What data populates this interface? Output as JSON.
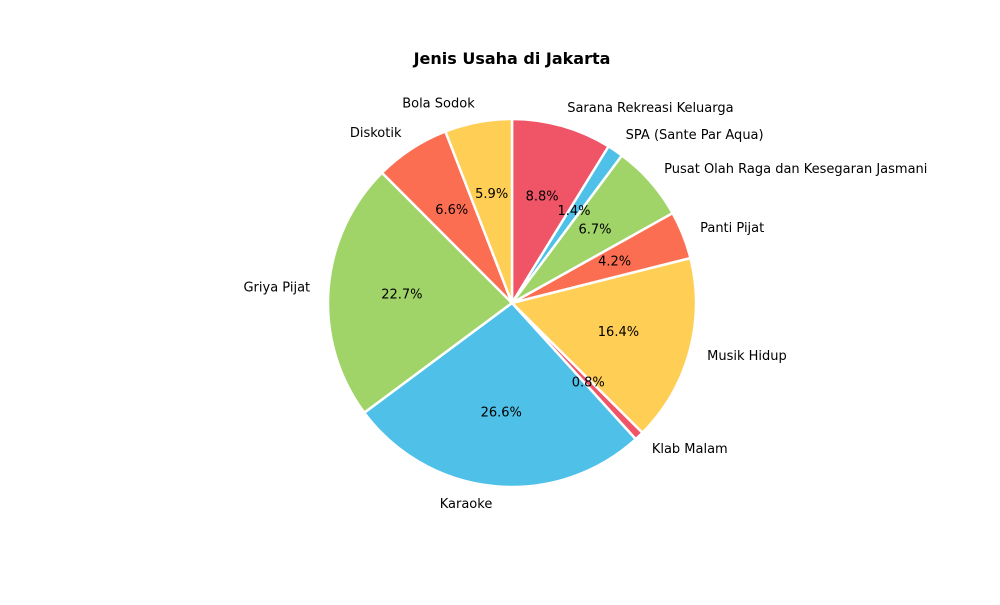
{
  "chart_data": {
    "type": "pie",
    "title": "Jenis Usaha di Jakarta",
    "categories": [
      "Sarana Rekreasi Keluarga",
      "SPA (Sante Par Aqua)",
      "Pusat Olah Raga dan Kesegaran Jasmani",
      "Panti Pijat",
      "Musik Hidup",
      "Klab Malam",
      "Karaoke",
      "Griya Pijat",
      "Diskotik",
      "Bola Sodok"
    ],
    "values": [
      8.8,
      1.4,
      6.7,
      4.2,
      16.4,
      0.8,
      26.6,
      22.7,
      6.6,
      5.9
    ],
    "value_labels": [
      "8.8%",
      "1.4%",
      "6.7%",
      "4.2%",
      "16.4%",
      "0.8%",
      "26.6%",
      "22.7%",
      "6.6%",
      "5.9%"
    ],
    "colors": [
      "#ef5566",
      "#4fc1e9",
      "#a0d468",
      "#fc6e51",
      "#ffce54",
      "#ef5566",
      "#4fc1e9",
      "#a0d468",
      "#fc6e51",
      "#ffce54"
    ],
    "start": "top",
    "direction": "clockwise",
    "legend": "none"
  }
}
